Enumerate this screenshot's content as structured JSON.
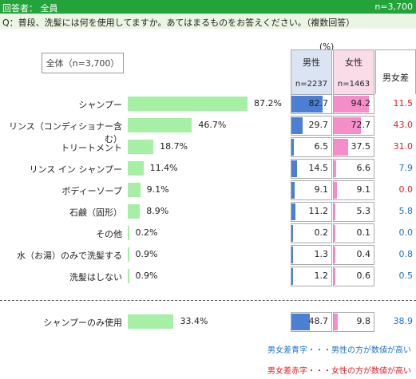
{
  "header": {
    "respondent": "回答者： 全員",
    "n_total": "n=3,700"
  },
  "question": "Q：普段、洗髪には何を使用してますか。あてはまるものをお答えください。（複数回答）",
  "unit": "(%)",
  "overall_label": "全体（n=3,700）",
  "columns": {
    "male": {
      "title": "男性",
      "n": "n=2237"
    },
    "female": {
      "title": "女性",
      "n": "n=1463"
    },
    "diff": {
      "title": "男女差"
    }
  },
  "colors": {
    "header_green": "#23a43b",
    "overall_bar": "#a6f0a6",
    "male_bar": "#4a7fd4",
    "female_bar": "#f58ec8",
    "diff_blue": "#1f73c9",
    "diff_red": "#e0202a"
  },
  "chart_data": {
    "type": "bar",
    "categories": [
      "シャンプー",
      "リンス（コンディショナー含む）",
      "トリートメント",
      "リンス イン シャンプー",
      "ボディーソープ",
      "石鹸（固形）",
      "その他",
      "水（お湯）のみで洗髪する",
      "洗髪はしない"
    ],
    "overall_display": [
      "87.2%",
      "46.7%",
      "18.7%",
      "11.4%",
      "9.1%",
      "8.9%",
      "0.2%",
      "0.9%",
      "0.9%"
    ],
    "overall": [
      87.2,
      46.7,
      18.7,
      11.4,
      9.1,
      8.9,
      0.2,
      0.9,
      0.9
    ],
    "male": [
      "82.7",
      "29.7",
      "6.5",
      "14.5",
      "9.1",
      "11.2",
      "0.2",
      "1.3",
      "1.2"
    ],
    "female": [
      "94.2",
      "72.7",
      "37.5",
      "6.6",
      "9.1",
      "5.3",
      "0.1",
      "0.4",
      "0.6"
    ],
    "diff": [
      "11.5",
      "43.0",
      "31.0",
      "7.9",
      "0.0",
      "5.8",
      "0.0",
      "0.8",
      "0.5"
    ],
    "diff_color": [
      "red",
      "red",
      "red",
      "blue",
      "red",
      "blue",
      "blue",
      "blue",
      "blue"
    ],
    "extra": {
      "category": "シャンプーのみ使用",
      "overall_display": "33.4%",
      "overall": 33.4,
      "male": "48.7",
      "female": "9.8",
      "diff": "38.9",
      "diff_color": "blue"
    }
  },
  "notes": {
    "blue": "男女差青字・・・男性の方が数値が高い",
    "red": "男女差赤字・・・女性の方が数値が高い"
  }
}
